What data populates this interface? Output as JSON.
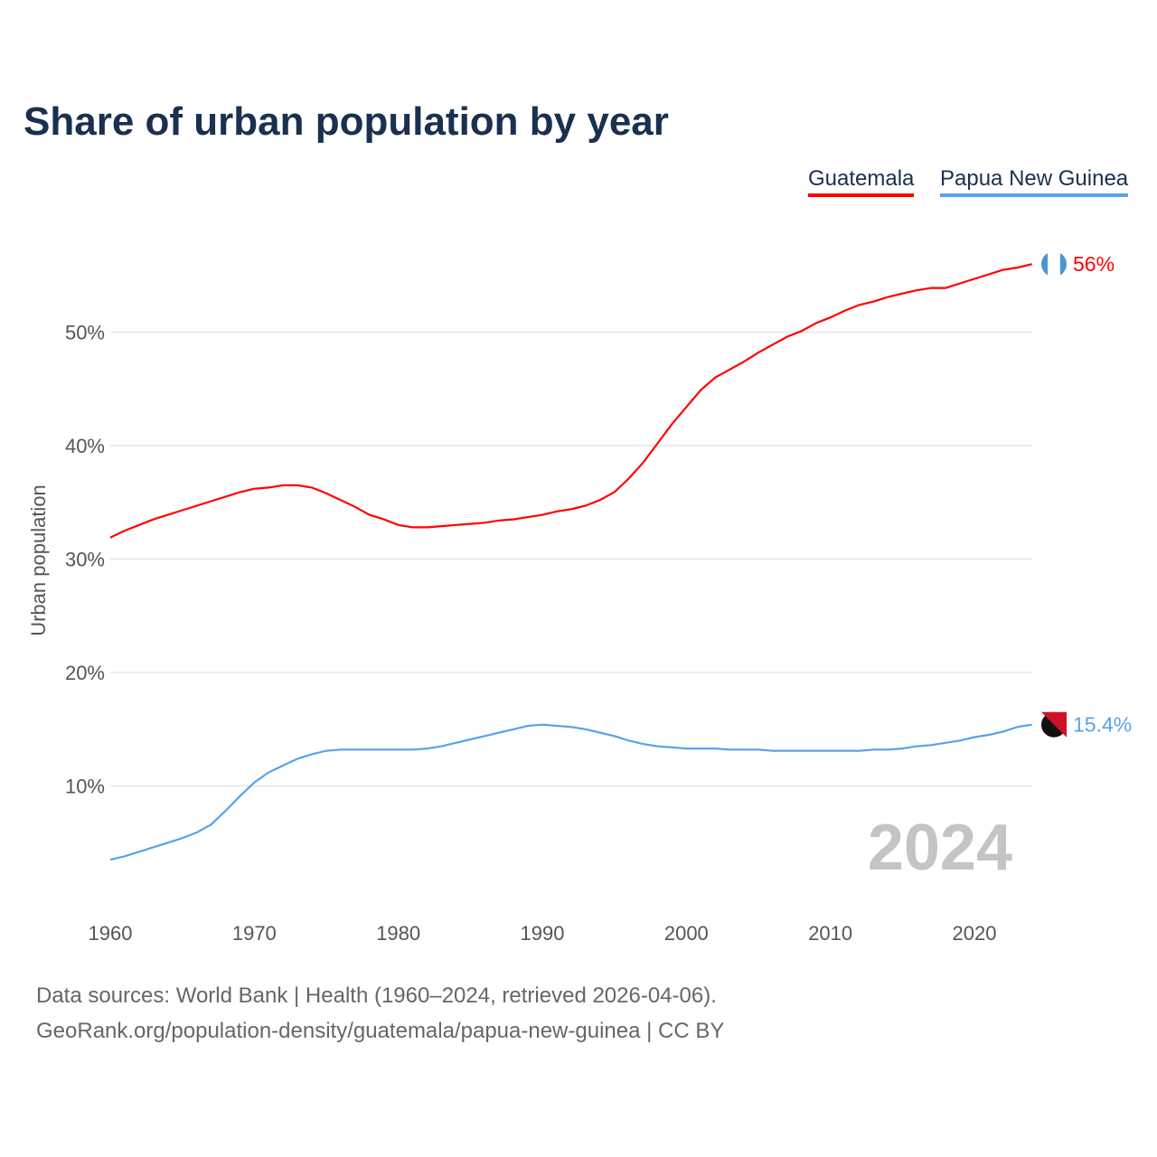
{
  "chart_data": {
    "type": "line",
    "title": "Share of urban population by year",
    "ylabel": "Urban population",
    "xlabel": "",
    "xlim": [
      1960,
      2024
    ],
    "ylim": [
      0,
      60
    ],
    "yticks": [
      "10%",
      "20%",
      "30%",
      "40%",
      "50%"
    ],
    "ytick_values": [
      10,
      20,
      30,
      40,
      50
    ],
    "xticks": [
      "1960",
      "1970",
      "1980",
      "1990",
      "2000",
      "2010",
      "2020"
    ],
    "grid": true,
    "legend_position": "top-right",
    "year_label": "2024",
    "x": [
      1960,
      1961,
      1962,
      1963,
      1964,
      1965,
      1966,
      1967,
      1968,
      1969,
      1970,
      1971,
      1972,
      1973,
      1974,
      1975,
      1976,
      1977,
      1978,
      1979,
      1980,
      1981,
      1982,
      1983,
      1984,
      1985,
      1986,
      1987,
      1988,
      1989,
      1990,
      1991,
      1992,
      1993,
      1994,
      1995,
      1996,
      1997,
      1998,
      1999,
      2000,
      2001,
      2002,
      2003,
      2004,
      2005,
      2006,
      2007,
      2008,
      2009,
      2010,
      2011,
      2012,
      2013,
      2014,
      2015,
      2016,
      2017,
      2018,
      2019,
      2020,
      2021,
      2022,
      2023,
      2024
    ],
    "series": [
      {
        "name": "Guatemala",
        "color": "#ff0000",
        "end_label": "56%",
        "values": [
          31.9,
          32.5,
          33.0,
          33.5,
          33.9,
          34.3,
          34.7,
          35.1,
          35.5,
          35.9,
          36.2,
          36.3,
          36.5,
          36.5,
          36.3,
          35.8,
          35.2,
          34.6,
          33.9,
          33.5,
          33.0,
          32.8,
          32.8,
          32.9,
          33.0,
          33.1,
          33.2,
          33.4,
          33.5,
          33.7,
          33.9,
          34.2,
          34.4,
          34.7,
          35.2,
          35.9,
          37.1,
          38.5,
          40.2,
          41.9,
          43.4,
          44.9,
          46.0,
          46.7,
          47.4,
          48.2,
          48.9,
          49.6,
          50.1,
          50.8,
          51.3,
          51.9,
          52.4,
          52.7,
          53.1,
          53.4,
          53.7,
          53.9,
          53.9,
          54.3,
          54.7,
          55.1,
          55.5,
          55.7,
          56.0
        ]
      },
      {
        "name": "Papua New Guinea",
        "color": "#5aa2ea",
        "end_label": "15.4%",
        "values": [
          3.5,
          3.8,
          4.2,
          4.6,
          5.0,
          5.4,
          5.9,
          6.6,
          7.8,
          9.1,
          10.3,
          11.2,
          11.8,
          12.4,
          12.8,
          13.1,
          13.2,
          13.2,
          13.2,
          13.2,
          13.2,
          13.2,
          13.3,
          13.5,
          13.8,
          14.1,
          14.4,
          14.7,
          15.0,
          15.3,
          15.4,
          15.3,
          15.2,
          15.0,
          14.7,
          14.4,
          14.0,
          13.7,
          13.5,
          13.4,
          13.3,
          13.3,
          13.3,
          13.2,
          13.2,
          13.2,
          13.1,
          13.1,
          13.1,
          13.1,
          13.1,
          13.1,
          13.1,
          13.2,
          13.2,
          13.3,
          13.5,
          13.6,
          13.8,
          14.0,
          14.3,
          14.5,
          14.8,
          15.2,
          15.4
        ]
      }
    ]
  },
  "footer": {
    "line1": "Data sources: World Bank | Health (1960–2024, retrieved 2026-04-06).",
    "line2": "GeoRank.org/population-density/guatemala/papua-new-guinea | CC BY"
  }
}
